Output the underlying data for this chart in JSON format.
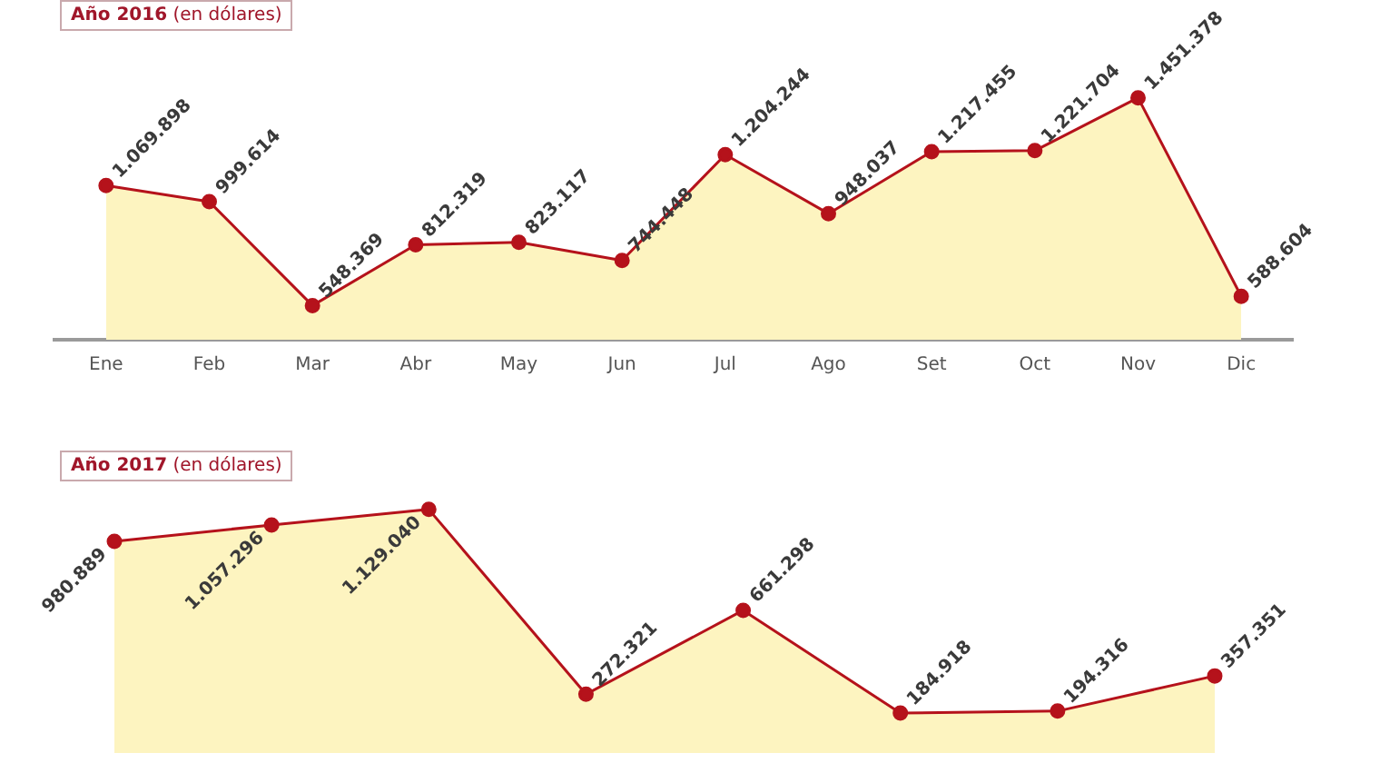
{
  "chart_data": [
    {
      "type": "area",
      "title": "Año 2016",
      "subtitle": "(en dólares)",
      "categories": [
        "Ene",
        "Feb",
        "Mar",
        "Abr",
        "May",
        "Jun",
        "Jul",
        "Ago",
        "Set",
        "Oct",
        "Nov",
        "Dic"
      ],
      "values": [
        1069898,
        999614,
        548369,
        812319,
        823117,
        744448,
        1204244,
        948037,
        1217455,
        1221704,
        1451378,
        588604
      ],
      "value_labels": [
        "1.069.898",
        "999.614",
        "548.369",
        "812.319",
        "823.117",
        "744.448",
        "1.204.244",
        "948.037",
        "1.217.455",
        "1.221.704",
        "1.451.378",
        "588.604"
      ],
      "color": "#b5121b",
      "tick_labels": "x",
      "grid": false,
      "marker": "circle"
    },
    {
      "type": "area",
      "title": "Año 2017",
      "subtitle": "(en dólares)",
      "categories": [
        null,
        null,
        null,
        null,
        null,
        null,
        null,
        null
      ],
      "values": [
        980889,
        1057296,
        1129040,
        272321,
        661298,
        184918,
        194316,
        357351
      ],
      "value_labels": [
        "980.889",
        "1.057.296",
        "1.129.040",
        "272.321",
        "661.298",
        "184.918",
        "194.316",
        "357.351"
      ],
      "color": "#b5121b",
      "tick_labels": false,
      "grid": false,
      "marker": "circle"
    }
  ]
}
